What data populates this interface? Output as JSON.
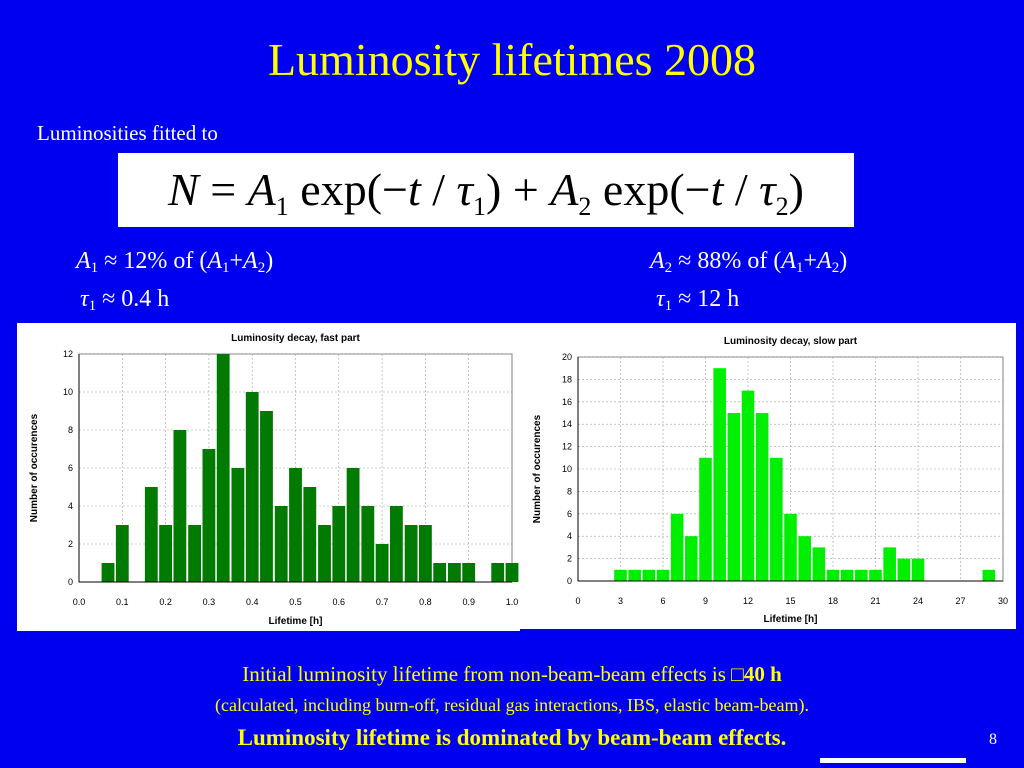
{
  "slide": {
    "title": "Luminosity lifetimes 2008",
    "subtitle": "Luminosities fitted to",
    "formula": {
      "N": "N",
      "eq": "=",
      "A": "A",
      "one": "1",
      "two": "2",
      "exp_open": "exp(",
      "minus": "−",
      "t": "t",
      "slash": " / ",
      "tau": "τ",
      "close": ")",
      "plus": "+"
    },
    "params": {
      "left": {
        "a_sym": "A",
        "a_sub": "1",
        "a_text": " ≈ 12% of (",
        "a_sum1": "A",
        "a_sum1_sub": "1",
        "a_plus": "+",
        "a_sum2": "A",
        "a_sum2_sub": "2",
        "a_close": ")",
        "tau_sym": "τ",
        "tau_sub": "1",
        "tau_text": " ≈ 0.4 h"
      },
      "right": {
        "a_sym": "A",
        "a_sub": "2",
        "a_text": " ≈ 88% of (",
        "a_sum1": "A",
        "a_sum1_sub": "1",
        "a_plus": "+",
        "a_sum2": "A",
        "a_sum2_sub": "2",
        "a_close": ")",
        "tau_sym": "τ",
        "tau_sub": "1",
        "tau_text": "  ≈ 12 h"
      }
    },
    "footer": {
      "line1_text": "Initial luminosity lifetime from non-beam-beam effects is ",
      "line1_glyph": "□",
      "line1_bold": "40 h",
      "line2": "(calculated, including burn-off, residual gas interactions, IBS, elastic beam-beam).",
      "line3": "Luminosity  lifetime is dominated by beam-beam effects."
    },
    "page_number": "8",
    "colors": {
      "background": "#0000f0",
      "title": "#ffff00",
      "fast_bars": "#007a00",
      "slow_bars": "#00ee00"
    }
  },
  "chart_data": [
    {
      "type": "bar",
      "title": "Luminosity decay, fast part",
      "xlabel": "Lifetime [h]",
      "ylabel": "Number of occurences",
      "xlim": [
        0.0,
        1.0
      ],
      "ylim": [
        0,
        12
      ],
      "bin_width": 0.0333,
      "x_ticks": [
        "0.0",
        "0.1",
        "0.2",
        "0.3",
        "0.4",
        "0.5",
        "0.6",
        "0.7",
        "0.8",
        "0.9",
        "1.0"
      ],
      "y_ticks": [
        "0",
        "2",
        "4",
        "6",
        "8",
        "10",
        "12"
      ],
      "grid": true,
      "bar_color": "#007a00",
      "bins_x": [
        0.067,
        0.1,
        0.167,
        0.2,
        0.233,
        0.267,
        0.3,
        0.333,
        0.367,
        0.4,
        0.433,
        0.467,
        0.5,
        0.533,
        0.567,
        0.6,
        0.633,
        0.667,
        0.7,
        0.733,
        0.767,
        0.8,
        0.833,
        0.867,
        0.9,
        0.967,
        1.0
      ],
      "values": [
        1,
        3,
        5,
        3,
        8,
        3,
        7,
        12,
        6,
        10,
        9,
        4,
        6,
        5,
        3,
        4,
        6,
        4,
        2,
        4,
        3,
        3,
        1,
        1,
        1,
        1,
        1
      ]
    },
    {
      "type": "bar",
      "title": "Luminosity decay, slow part",
      "xlabel": "Lifetime [h]",
      "ylabel": "Number of occurences",
      "xlim": [
        0,
        30
      ],
      "ylim": [
        0,
        20
      ],
      "bin_width": 1,
      "x_ticks": [
        "0",
        "3",
        "6",
        "9",
        "12",
        "15",
        "18",
        "21",
        "24",
        "27",
        "30"
      ],
      "y_ticks": [
        "0",
        "2",
        "4",
        "6",
        "8",
        "10",
        "12",
        "14",
        "16",
        "18",
        "20"
      ],
      "grid": true,
      "bar_color": "#00ee00",
      "bins_x": [
        3,
        4,
        5,
        6,
        7,
        8,
        9,
        10,
        11,
        12,
        13,
        14,
        15,
        16,
        17,
        18,
        19,
        20,
        21,
        22,
        23,
        24,
        29
      ],
      "values": [
        1,
        1,
        1,
        1,
        6,
        4,
        11,
        19,
        15,
        17,
        15,
        11,
        6,
        4,
        3,
        1,
        1,
        1,
        1,
        3,
        2,
        2,
        1
      ]
    }
  ]
}
